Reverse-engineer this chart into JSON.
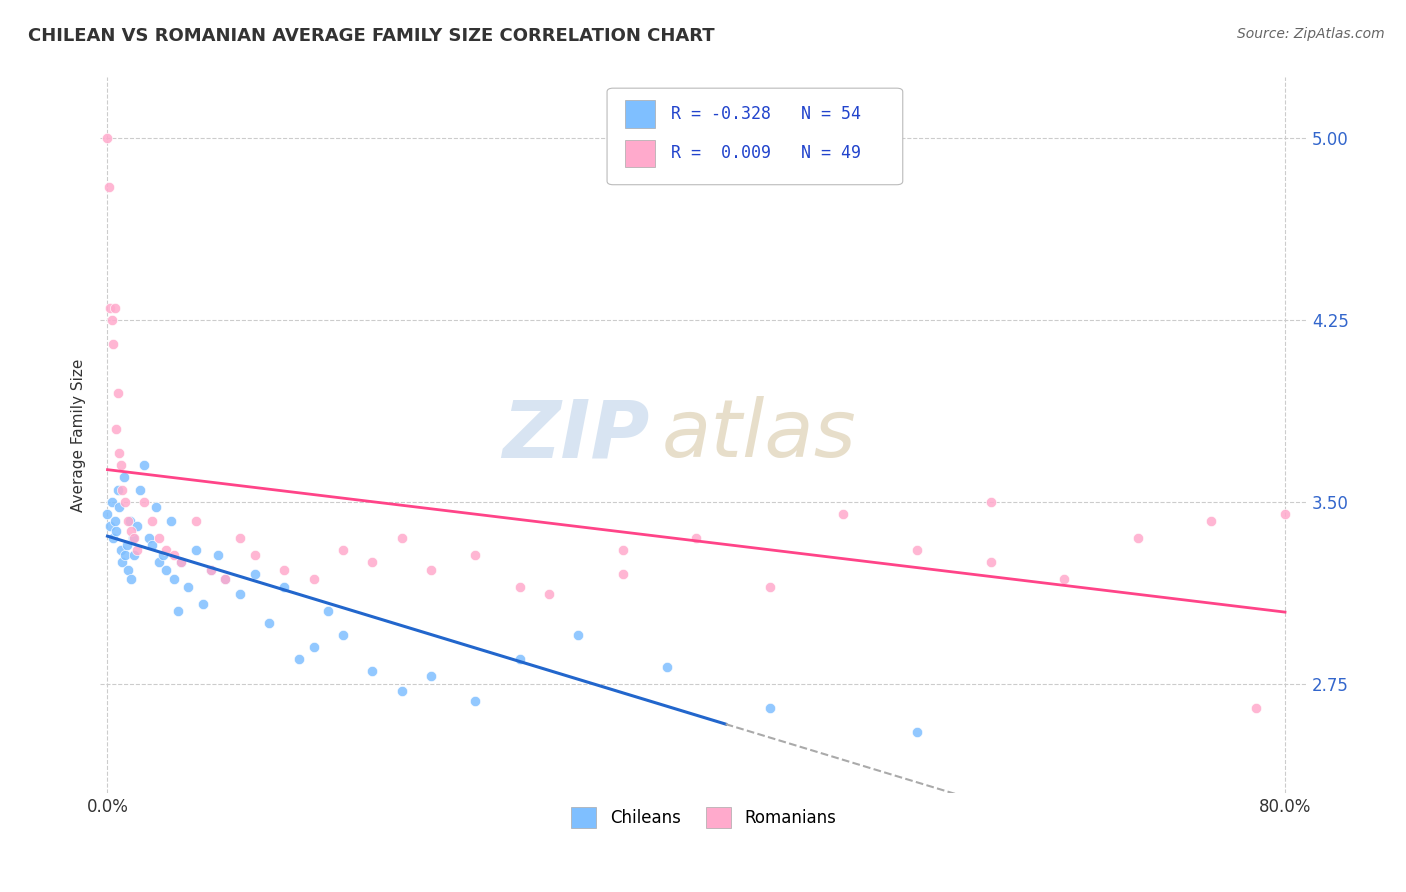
{
  "title": "CHILEAN VS ROMANIAN AVERAGE FAMILY SIZE CORRELATION CHART",
  "source": "Source: ZipAtlas.com",
  "ylabel": "Average Family Size",
  "legend_labels": [
    "Chileans",
    "Romanians"
  ],
  "r_chilean": -0.328,
  "n_chilean": 54,
  "r_romanian": 0.009,
  "n_romanian": 49,
  "xlim": [
    -0.005,
    0.815
  ],
  "ylim": [
    2.3,
    5.25
  ],
  "yticks": [
    2.75,
    3.5,
    4.25,
    5.0
  ],
  "xtick_labels": [
    "0.0%",
    "80.0%"
  ],
  "xtick_positions": [
    0.0,
    0.8
  ],
  "color_chilean": "#7fbfff",
  "color_romanian": "#ffaacc",
  "trendline_chilean_color": "#2266cc",
  "trendline_romanian_color": "#ff4488",
  "trendline_dashed_color": "#aaaaaa",
  "background_color": "#ffffff",
  "grid_color": "#cccccc",
  "title_color": "#333333",
  "source_color": "#666666",
  "chilean_x": [
    0.0,
    0.002,
    0.003,
    0.004,
    0.005,
    0.006,
    0.007,
    0.008,
    0.009,
    0.01,
    0.011,
    0.012,
    0.013,
    0.014,
    0.015,
    0.016,
    0.017,
    0.018,
    0.02,
    0.022,
    0.025,
    0.028,
    0.03,
    0.033,
    0.035,
    0.038,
    0.04,
    0.043,
    0.045,
    0.048,
    0.05,
    0.055,
    0.06,
    0.065,
    0.07,
    0.075,
    0.08,
    0.09,
    0.1,
    0.11,
    0.12,
    0.13,
    0.14,
    0.15,
    0.16,
    0.18,
    0.2,
    0.22,
    0.25,
    0.28,
    0.32,
    0.38,
    0.45,
    0.55
  ],
  "chilean_y": [
    3.45,
    3.4,
    3.5,
    3.35,
    3.42,
    3.38,
    3.55,
    3.48,
    3.3,
    3.25,
    3.6,
    3.28,
    3.32,
    3.22,
    3.42,
    3.18,
    3.35,
    3.28,
    3.4,
    3.55,
    3.65,
    3.35,
    3.32,
    3.48,
    3.25,
    3.28,
    3.22,
    3.42,
    3.18,
    3.05,
    3.25,
    3.15,
    3.3,
    3.08,
    3.22,
    3.28,
    3.18,
    3.12,
    3.2,
    3.0,
    3.15,
    2.85,
    2.9,
    3.05,
    2.95,
    2.8,
    2.72,
    2.78,
    2.68,
    2.85,
    2.95,
    2.82,
    2.65,
    2.55
  ],
  "romanian_x": [
    0.0,
    0.001,
    0.002,
    0.003,
    0.004,
    0.005,
    0.006,
    0.007,
    0.008,
    0.009,
    0.01,
    0.012,
    0.014,
    0.016,
    0.018,
    0.02,
    0.025,
    0.03,
    0.035,
    0.04,
    0.045,
    0.05,
    0.06,
    0.07,
    0.08,
    0.09,
    0.1,
    0.12,
    0.14,
    0.16,
    0.18,
    0.2,
    0.22,
    0.25,
    0.28,
    0.3,
    0.35,
    0.4,
    0.45,
    0.5,
    0.55,
    0.6,
    0.65,
    0.7,
    0.75,
    0.78,
    0.8,
    0.35,
    0.6
  ],
  "romanian_y": [
    5.0,
    4.8,
    4.3,
    4.25,
    4.15,
    4.3,
    3.8,
    3.95,
    3.7,
    3.65,
    3.55,
    3.5,
    3.42,
    3.38,
    3.35,
    3.3,
    3.5,
    3.42,
    3.35,
    3.3,
    3.28,
    3.25,
    3.42,
    3.22,
    3.18,
    3.35,
    3.28,
    3.22,
    3.18,
    3.3,
    3.25,
    3.35,
    3.22,
    3.28,
    3.15,
    3.12,
    3.2,
    3.35,
    3.15,
    3.45,
    3.3,
    3.25,
    3.18,
    3.35,
    3.42,
    2.65,
    3.45,
    3.3,
    3.5
  ]
}
